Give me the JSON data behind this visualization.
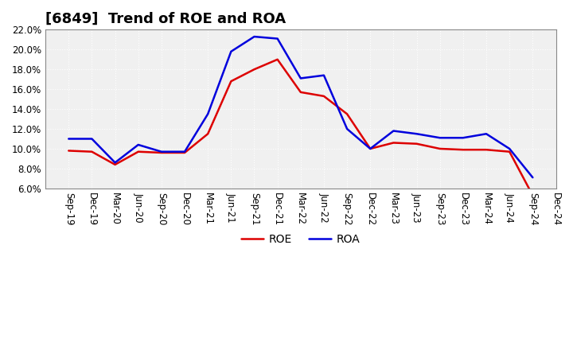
{
  "title": "[6849]  Trend of ROE and ROA",
  "x_labels": [
    "Sep-19",
    "Dec-19",
    "Mar-20",
    "Jun-20",
    "Sep-20",
    "Dec-20",
    "Mar-21",
    "Jun-21",
    "Sep-21",
    "Dec-21",
    "Mar-22",
    "Jun-22",
    "Sep-22",
    "Dec-22",
    "Mar-23",
    "Jun-23",
    "Sep-23",
    "Dec-23",
    "Mar-24",
    "Jun-24",
    "Sep-24",
    "Dec-24"
  ],
  "roe": [
    9.8,
    9.7,
    8.4,
    9.7,
    9.6,
    9.6,
    11.5,
    16.8,
    18.0,
    19.0,
    15.7,
    15.3,
    13.5,
    10.0,
    10.6,
    10.5,
    10.0,
    9.9,
    9.9,
    9.7,
    5.3,
    null
  ],
  "roa": [
    11.0,
    11.0,
    8.6,
    10.4,
    9.7,
    9.7,
    13.5,
    19.8,
    21.3,
    21.1,
    17.1,
    17.4,
    12.0,
    10.0,
    11.8,
    11.5,
    11.1,
    11.1,
    11.5,
    10.0,
    7.1,
    null
  ],
  "roe_color": "#dd0000",
  "roa_color": "#0000dd",
  "ylim": [
    6.0,
    22.0
  ],
  "yticks": [
    6.0,
    8.0,
    10.0,
    12.0,
    14.0,
    16.0,
    18.0,
    20.0,
    22.0
  ],
  "background_color": "#ffffff",
  "plot_bg_color": "#f0f0f0",
  "grid_color": "#ffffff",
  "title_fontsize": 13,
  "legend_fontsize": 10,
  "tick_fontsize": 8.5
}
